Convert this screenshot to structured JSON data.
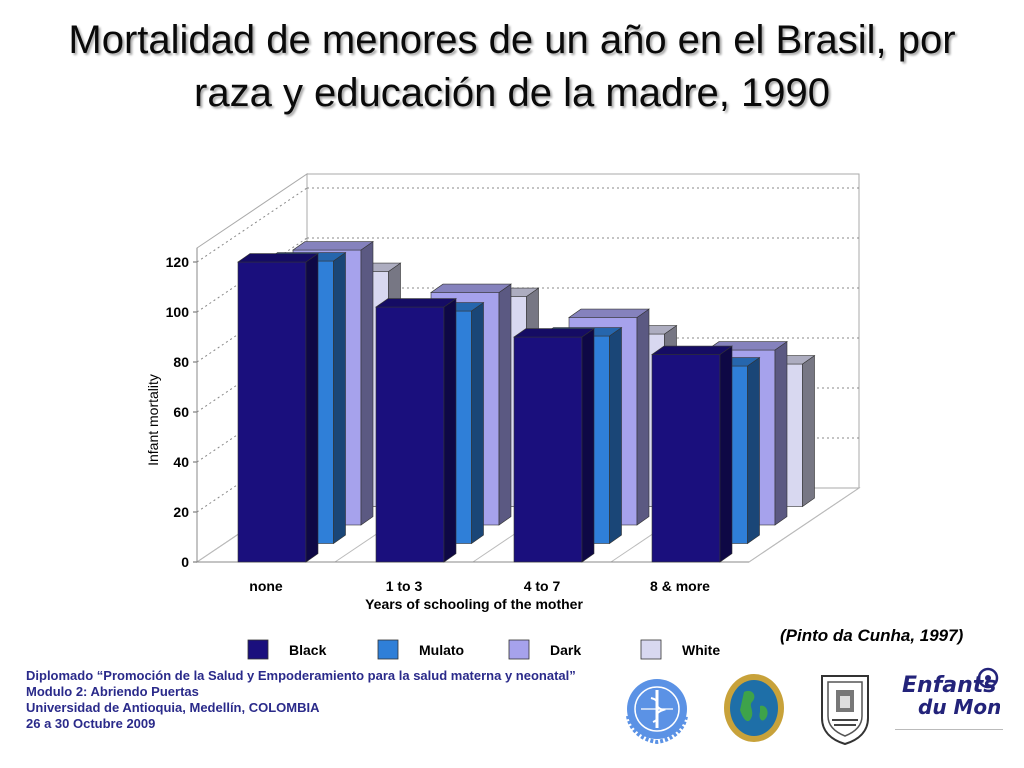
{
  "title": {
    "line1": "Mortalidad de menores de un año en el Brasil, por",
    "line2": "raza y educación de la madre, 1990"
  },
  "chart_data": {
    "type": "bar",
    "style": "3d-clustered",
    "categories": [
      "none",
      "1 to 3",
      "4 to 7",
      "8 & more"
    ],
    "xlabel": "Years of schooling of the mother",
    "ylabel": "Infant mortality",
    "ylim": [
      0,
      120
    ],
    "yticks": [
      0,
      20,
      40,
      60,
      80,
      100,
      120
    ],
    "grid": true,
    "legend_position": "bottom",
    "series": [
      {
        "name": "Black",
        "color": "#1a0f7d",
        "values": [
          120,
          102,
          90,
          83
        ]
      },
      {
        "name": "Mulato",
        "color": "#2f7fd8",
        "values": [
          113,
          93,
          83,
          71
        ]
      },
      {
        "name": "Dark",
        "color": "#a6a2ec",
        "values": [
          110,
          93,
          83,
          70
        ]
      },
      {
        "name": "White",
        "color": "#d8d8f0",
        "values": [
          94,
          84,
          69,
          57
        ]
      }
    ]
  },
  "citation": "(Pinto da Cunha, 1997)",
  "footer": {
    "line1": "Diplomado “Promoción de la Salud y Empoderamiento para la salud materna y neonatal”",
    "line2": "Modulo 2: Abriendo Puertas",
    "line3": "Universidad de Antioquia, Medellín, COLOMBIA",
    "line4": "26 a 30 Octubre 2009"
  },
  "logos": {
    "who": "who-emblem",
    "globe": "globe-seal",
    "university": "university-seal",
    "enfants": "Enfants du Monde"
  }
}
